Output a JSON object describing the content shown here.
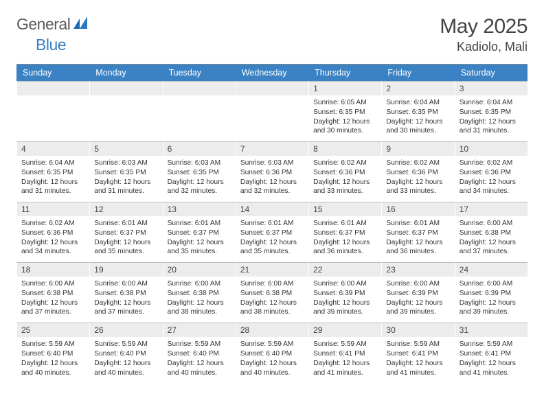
{
  "logo": {
    "text1": "General",
    "text2": "Blue",
    "color1": "#5a5a5a",
    "color2": "#3b7fc4",
    "mark_color": "#1f6bb5"
  },
  "title": {
    "month": "May 2025",
    "location": "Kadiolo, Mali"
  },
  "colors": {
    "header_bg": "#3b82c4",
    "header_text": "#ffffff",
    "daynum_bg": "#ececec",
    "border": "#bfbfbf"
  },
  "weekdays": [
    "Sunday",
    "Monday",
    "Tuesday",
    "Wednesday",
    "Thursday",
    "Friday",
    "Saturday"
  ],
  "weeks": [
    [
      {
        "num": "",
        "sunrise": "",
        "sunset": "",
        "daylight": ""
      },
      {
        "num": "",
        "sunrise": "",
        "sunset": "",
        "daylight": ""
      },
      {
        "num": "",
        "sunrise": "",
        "sunset": "",
        "daylight": ""
      },
      {
        "num": "",
        "sunrise": "",
        "sunset": "",
        "daylight": ""
      },
      {
        "num": "1",
        "sunrise": "Sunrise: 6:05 AM",
        "sunset": "Sunset: 6:35 PM",
        "daylight": "Daylight: 12 hours and 30 minutes."
      },
      {
        "num": "2",
        "sunrise": "Sunrise: 6:04 AM",
        "sunset": "Sunset: 6:35 PM",
        "daylight": "Daylight: 12 hours and 30 minutes."
      },
      {
        "num": "3",
        "sunrise": "Sunrise: 6:04 AM",
        "sunset": "Sunset: 6:35 PM",
        "daylight": "Daylight: 12 hours and 31 minutes."
      }
    ],
    [
      {
        "num": "4",
        "sunrise": "Sunrise: 6:04 AM",
        "sunset": "Sunset: 6:35 PM",
        "daylight": "Daylight: 12 hours and 31 minutes."
      },
      {
        "num": "5",
        "sunrise": "Sunrise: 6:03 AM",
        "sunset": "Sunset: 6:35 PM",
        "daylight": "Daylight: 12 hours and 31 minutes."
      },
      {
        "num": "6",
        "sunrise": "Sunrise: 6:03 AM",
        "sunset": "Sunset: 6:35 PM",
        "daylight": "Daylight: 12 hours and 32 minutes."
      },
      {
        "num": "7",
        "sunrise": "Sunrise: 6:03 AM",
        "sunset": "Sunset: 6:36 PM",
        "daylight": "Daylight: 12 hours and 32 minutes."
      },
      {
        "num": "8",
        "sunrise": "Sunrise: 6:02 AM",
        "sunset": "Sunset: 6:36 PM",
        "daylight": "Daylight: 12 hours and 33 minutes."
      },
      {
        "num": "9",
        "sunrise": "Sunrise: 6:02 AM",
        "sunset": "Sunset: 6:36 PM",
        "daylight": "Daylight: 12 hours and 33 minutes."
      },
      {
        "num": "10",
        "sunrise": "Sunrise: 6:02 AM",
        "sunset": "Sunset: 6:36 PM",
        "daylight": "Daylight: 12 hours and 34 minutes."
      }
    ],
    [
      {
        "num": "11",
        "sunrise": "Sunrise: 6:02 AM",
        "sunset": "Sunset: 6:36 PM",
        "daylight": "Daylight: 12 hours and 34 minutes."
      },
      {
        "num": "12",
        "sunrise": "Sunrise: 6:01 AM",
        "sunset": "Sunset: 6:37 PM",
        "daylight": "Daylight: 12 hours and 35 minutes."
      },
      {
        "num": "13",
        "sunrise": "Sunrise: 6:01 AM",
        "sunset": "Sunset: 6:37 PM",
        "daylight": "Daylight: 12 hours and 35 minutes."
      },
      {
        "num": "14",
        "sunrise": "Sunrise: 6:01 AM",
        "sunset": "Sunset: 6:37 PM",
        "daylight": "Daylight: 12 hours and 35 minutes."
      },
      {
        "num": "15",
        "sunrise": "Sunrise: 6:01 AM",
        "sunset": "Sunset: 6:37 PM",
        "daylight": "Daylight: 12 hours and 36 minutes."
      },
      {
        "num": "16",
        "sunrise": "Sunrise: 6:01 AM",
        "sunset": "Sunset: 6:37 PM",
        "daylight": "Daylight: 12 hours and 36 minutes."
      },
      {
        "num": "17",
        "sunrise": "Sunrise: 6:00 AM",
        "sunset": "Sunset: 6:38 PM",
        "daylight": "Daylight: 12 hours and 37 minutes."
      }
    ],
    [
      {
        "num": "18",
        "sunrise": "Sunrise: 6:00 AM",
        "sunset": "Sunset: 6:38 PM",
        "daylight": "Daylight: 12 hours and 37 minutes."
      },
      {
        "num": "19",
        "sunrise": "Sunrise: 6:00 AM",
        "sunset": "Sunset: 6:38 PM",
        "daylight": "Daylight: 12 hours and 37 minutes."
      },
      {
        "num": "20",
        "sunrise": "Sunrise: 6:00 AM",
        "sunset": "Sunset: 6:38 PM",
        "daylight": "Daylight: 12 hours and 38 minutes."
      },
      {
        "num": "21",
        "sunrise": "Sunrise: 6:00 AM",
        "sunset": "Sunset: 6:38 PM",
        "daylight": "Daylight: 12 hours and 38 minutes."
      },
      {
        "num": "22",
        "sunrise": "Sunrise: 6:00 AM",
        "sunset": "Sunset: 6:39 PM",
        "daylight": "Daylight: 12 hours and 39 minutes."
      },
      {
        "num": "23",
        "sunrise": "Sunrise: 6:00 AM",
        "sunset": "Sunset: 6:39 PM",
        "daylight": "Daylight: 12 hours and 39 minutes."
      },
      {
        "num": "24",
        "sunrise": "Sunrise: 6:00 AM",
        "sunset": "Sunset: 6:39 PM",
        "daylight": "Daylight: 12 hours and 39 minutes."
      }
    ],
    [
      {
        "num": "25",
        "sunrise": "Sunrise: 5:59 AM",
        "sunset": "Sunset: 6:40 PM",
        "daylight": "Daylight: 12 hours and 40 minutes."
      },
      {
        "num": "26",
        "sunrise": "Sunrise: 5:59 AM",
        "sunset": "Sunset: 6:40 PM",
        "daylight": "Daylight: 12 hours and 40 minutes."
      },
      {
        "num": "27",
        "sunrise": "Sunrise: 5:59 AM",
        "sunset": "Sunset: 6:40 PM",
        "daylight": "Daylight: 12 hours and 40 minutes."
      },
      {
        "num": "28",
        "sunrise": "Sunrise: 5:59 AM",
        "sunset": "Sunset: 6:40 PM",
        "daylight": "Daylight: 12 hours and 40 minutes."
      },
      {
        "num": "29",
        "sunrise": "Sunrise: 5:59 AM",
        "sunset": "Sunset: 6:41 PM",
        "daylight": "Daylight: 12 hours and 41 minutes."
      },
      {
        "num": "30",
        "sunrise": "Sunrise: 5:59 AM",
        "sunset": "Sunset: 6:41 PM",
        "daylight": "Daylight: 12 hours and 41 minutes."
      },
      {
        "num": "31",
        "sunrise": "Sunrise: 5:59 AM",
        "sunset": "Sunset: 6:41 PM",
        "daylight": "Daylight: 12 hours and 41 minutes."
      }
    ]
  ]
}
